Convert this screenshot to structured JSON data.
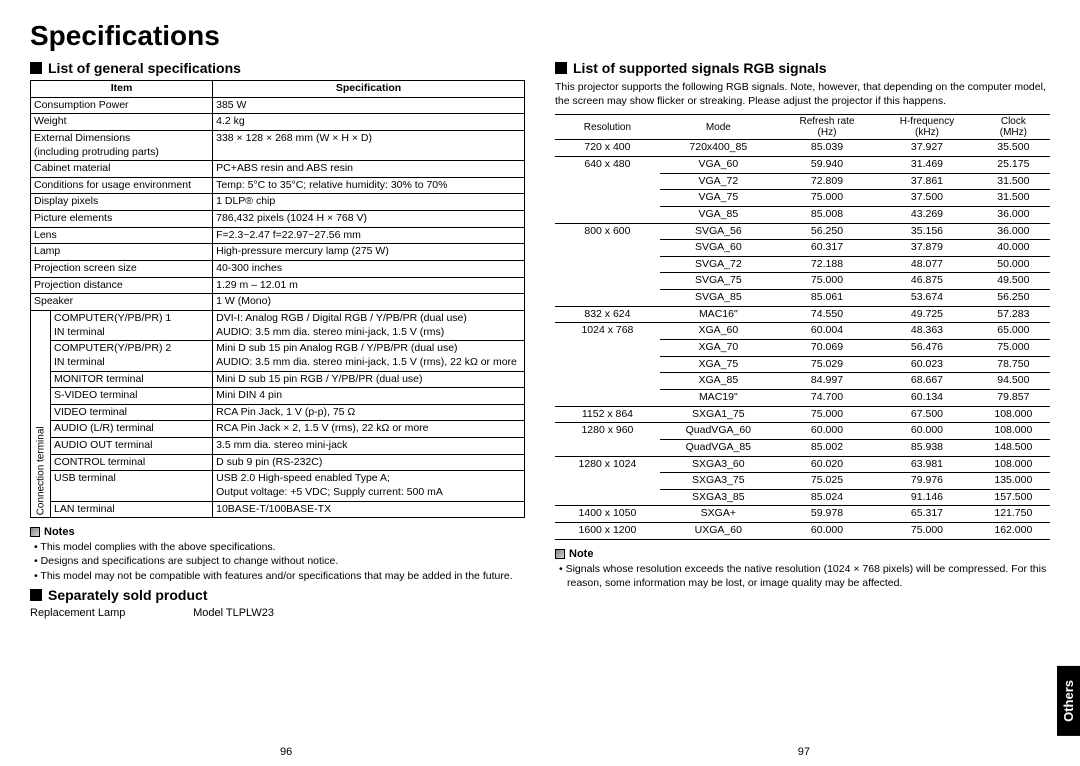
{
  "page_title": "Specifications",
  "left": {
    "heading": "List of general specifications",
    "table": {
      "header_item": "Item",
      "header_spec": "Specification",
      "rows": [
        {
          "item": "Consumption Power",
          "spec": "385 W"
        },
        {
          "item": "Weight",
          "spec": "4.2 kg"
        },
        {
          "item": "External Dimensions\n(including protruding parts)",
          "spec": "338 × 128 × 268 mm (W × H × D)"
        },
        {
          "item": "Cabinet material",
          "spec": "PC+ABS resin and ABS resin"
        },
        {
          "item": "Conditions for usage environment",
          "spec": "Temp: 5°C to 35°C; relative humidity: 30% to 70%"
        },
        {
          "item": "Display pixels",
          "spec": "1 DLP® chip"
        },
        {
          "item": "Picture elements",
          "spec": "786,432 pixels (1024 H × 768 V)"
        },
        {
          "item": "Lens",
          "spec": "F=2.3~2.47  f=22.97~27.56 mm"
        },
        {
          "item": "Lamp",
          "spec": "High-pressure mercury lamp (275 W)"
        },
        {
          "item": "Projection screen size",
          "spec": "40-300 inches"
        },
        {
          "item": "Projection distance",
          "spec": "1.29 m – 12.01 m"
        },
        {
          "item": "Speaker",
          "spec": "1 W (Mono)"
        }
      ],
      "conn_label": "Connection terminal",
      "conn_rows": [
        {
          "item": "COMPUTER(Y/PB/PR) 1\nIN terminal",
          "spec": "DVI-I: Analog RGB / Digital RGB / Y/PB/PR (dual use)\nAUDIO: 3.5 mm dia. stereo mini-jack, 1.5 V (rms)"
        },
        {
          "item": "COMPUTER(Y/PB/PR) 2\nIN terminal",
          "spec": "Mini D sub 15 pin  Analog RGB / Y/PB/PR (dual use)\nAUDIO: 3.5 mm dia. stereo mini-jack, 1.5 V (rms), 22 kΩ or more"
        },
        {
          "item": "MONITOR terminal",
          "spec": "Mini D sub 15 pin  RGB / Y/PB/PR (dual use)"
        },
        {
          "item": "S-VIDEO terminal",
          "spec": "Mini DIN 4 pin"
        },
        {
          "item": "VIDEO terminal",
          "spec": "RCA Pin Jack, 1 V (p-p), 75 Ω"
        },
        {
          "item": "AUDIO (L/R) terminal",
          "spec": "RCA Pin Jack × 2, 1.5 V (rms), 22 kΩ or more"
        },
        {
          "item": "AUDIO OUT terminal",
          "spec": "3.5 mm dia. stereo mini-jack"
        },
        {
          "item": "CONTROL terminal",
          "spec": "D sub 9 pin (RS-232C)"
        },
        {
          "item": "USB terminal",
          "spec": "USB 2.0 High-speed enabled Type A;\nOutput voltage: +5 VDC; Supply current: 500 mA"
        },
        {
          "item": "LAN terminal",
          "spec": "10BASE-T/100BASE-TX"
        }
      ]
    },
    "notes_heading": "Notes",
    "notes": [
      "This model complies with the above specifications.",
      "Designs and specifications are subject to change without notice.",
      "This model may not be compatible with features and/or specifications that may be added in the future."
    ],
    "sep_heading": "Separately sold product",
    "sep_item": "Replacement Lamp",
    "sep_model": "Model TLPLW23",
    "page_number": "96"
  },
  "right": {
    "heading": "List of supported signals RGB signals",
    "intro": "This projector supports the following RGB signals. Note, however, that depending on the computer model, the screen may show flicker or streaking. Please adjust the projector if this happens.",
    "table": {
      "headers": [
        "Resolution",
        "Mode",
        "Refresh rate\n(Hz)",
        "H-frequency\n(kHz)",
        "Clock\n(MHz)"
      ],
      "rows": [
        {
          "res": "720 x 400",
          "mode": "720x400_85",
          "r": "85.039",
          "h": "37.927",
          "c": "35.500"
        },
        {
          "res": "640 x 480",
          "mode": "VGA_60",
          "r": "59.940",
          "h": "31.469",
          "c": "25.175"
        },
        {
          "res": "",
          "mode": "VGA_72",
          "r": "72.809",
          "h": "37.861",
          "c": "31.500"
        },
        {
          "res": "",
          "mode": "VGA_75",
          "r": "75.000",
          "h": "37.500",
          "c": "31.500"
        },
        {
          "res": "",
          "mode": "VGA_85",
          "r": "85.008",
          "h": "43.269",
          "c": "36.000"
        },
        {
          "res": "800 x 600",
          "mode": "SVGA_56",
          "r": "56.250",
          "h": "35.156",
          "c": "36.000"
        },
        {
          "res": "",
          "mode": "SVGA_60",
          "r": "60.317",
          "h": "37.879",
          "c": "40.000"
        },
        {
          "res": "",
          "mode": "SVGA_72",
          "r": "72.188",
          "h": "48.077",
          "c": "50.000"
        },
        {
          "res": "",
          "mode": "SVGA_75",
          "r": "75.000",
          "h": "46.875",
          "c": "49.500"
        },
        {
          "res": "",
          "mode": "SVGA_85",
          "r": "85.061",
          "h": "53.674",
          "c": "56.250"
        },
        {
          "res": "832 x 624",
          "mode": "MAC16\"",
          "r": "74.550",
          "h": "49.725",
          "c": "57.283"
        },
        {
          "res": "1024 x 768",
          "mode": "XGA_60",
          "r": "60.004",
          "h": "48.363",
          "c": "65.000"
        },
        {
          "res": "",
          "mode": "XGA_70",
          "r": "70.069",
          "h": "56.476",
          "c": "75.000"
        },
        {
          "res": "",
          "mode": "XGA_75",
          "r": "75.029",
          "h": "60.023",
          "c": "78.750"
        },
        {
          "res": "",
          "mode": "XGA_85",
          "r": "84.997",
          "h": "68.667",
          "c": "94.500"
        },
        {
          "res": "",
          "mode": "MAC19\"",
          "r": "74.700",
          "h": "60.134",
          "c": "79.857"
        },
        {
          "res": "1152 x 864",
          "mode": "SXGA1_75",
          "r": "75.000",
          "h": "67.500",
          "c": "108.000"
        },
        {
          "res": "1280 x 960",
          "mode": "QuadVGA_60",
          "r": "60.000",
          "h": "60.000",
          "c": "108.000"
        },
        {
          "res": "",
          "mode": "QuadVGA_85",
          "r": "85.002",
          "h": "85.938",
          "c": "148.500"
        },
        {
          "res": "1280 x 1024",
          "mode": "SXGA3_60",
          "r": "60.020",
          "h": "63.981",
          "c": "108.000"
        },
        {
          "res": "",
          "mode": "SXGA3_75",
          "r": "75.025",
          "h": "79.976",
          "c": "135.000"
        },
        {
          "res": "",
          "mode": "SXGA3_85",
          "r": "85.024",
          "h": "91.146",
          "c": "157.500"
        },
        {
          "res": "1400 x 1050",
          "mode": "SXGA+",
          "r": "59.978",
          "h": "65.317",
          "c": "121.750"
        },
        {
          "res": "1600 x 1200",
          "mode": "UXGA_60",
          "r": "60.000",
          "h": "75.000",
          "c": "162.000"
        }
      ]
    },
    "note_heading": "Note",
    "note": "Signals whose resolution exceeds the native resolution (1024 × 768 pixels) will be compressed. For this reason, some information may be lost, or image quality may be affected.",
    "page_number": "97"
  },
  "side_tab": "Others"
}
